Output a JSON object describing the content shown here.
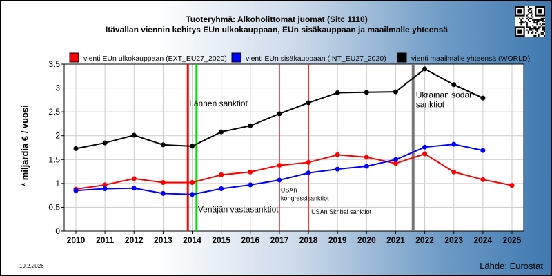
{
  "chart_data": {
    "type": "line",
    "title": "Tuoteryhmä: Alkoholittomat juomat (Sitc 1110)",
    "subtitle": "Itävallan viennin kehitys EUn ulkokauppaan, EUn sisäkauppaan ja maailmalle yhteensä",
    "ylabel": "* miljardia € / vuosi",
    "ylim": [
      0,
      3.5
    ],
    "yticks": [
      "0",
      "0.5",
      "1",
      "1.5",
      "2",
      "2.5",
      "3",
      "3.5"
    ],
    "x": [
      "2010",
      "2011",
      "2012",
      "2013",
      "2014",
      "2015",
      "2016",
      "2017",
      "2018",
      "2019",
      "2020",
      "2021",
      "2022",
      "2023",
      "2024",
      "2025"
    ],
    "grid": true,
    "legend_position": "top",
    "series": [
      {
        "name": "vienti EUn ulkokauppaan (EXT_EU27_2020)",
        "color": "#ff0000",
        "values": [
          0.88,
          0.97,
          1.1,
          1.02,
          1.02,
          1.18,
          1.24,
          1.38,
          1.44,
          1.6,
          1.55,
          1.42,
          1.62,
          1.24,
          1.08,
          0.96
        ]
      },
      {
        "name": "vienti EUn sisäkauppaan (INT_EU27_2020)",
        "color": "#0000ff",
        "values": [
          0.85,
          0.89,
          0.9,
          0.79,
          0.77,
          0.89,
          0.97,
          1.07,
          1.22,
          1.3,
          1.36,
          1.5,
          1.76,
          1.82,
          1.69,
          null
        ]
      },
      {
        "name": "vienti maailmalle yhteensä (WORLD)",
        "color": "#000000",
        "values": [
          1.73,
          1.85,
          2.01,
          1.81,
          1.78,
          2.08,
          2.21,
          2.46,
          2.69,
          2.9,
          2.91,
          2.92,
          3.4,
          3.07,
          2.79,
          null
        ]
      }
    ],
    "events": [
      {
        "x": 2013.85,
        "color": "#ff0000",
        "width": 3,
        "label": "Lännen sanktiot",
        "label_y": 2.62
      },
      {
        "x": 2014.15,
        "color": "#00dd00",
        "width": 3,
        "label": "Venäjän vastasanktiot",
        "label_y": 0.4
      },
      {
        "x": 2017.0,
        "color": "#ff0000",
        "width": 1.5,
        "label": "USAn kongressisanktiot",
        "label_y": 0.7
      },
      {
        "x": 2018.0,
        "color": "#ff0000",
        "width": 1.5,
        "label": "USAn Skribal sanktiot",
        "label_y": 0.36
      },
      {
        "x": 2021.6,
        "color": "#777777",
        "width": 4,
        "label": "Ukrainan sodan sanktiot",
        "label_y": 2.8
      }
    ]
  },
  "footer": {
    "date": "19.2.2026",
    "source": "Lähde: Eurostat"
  }
}
